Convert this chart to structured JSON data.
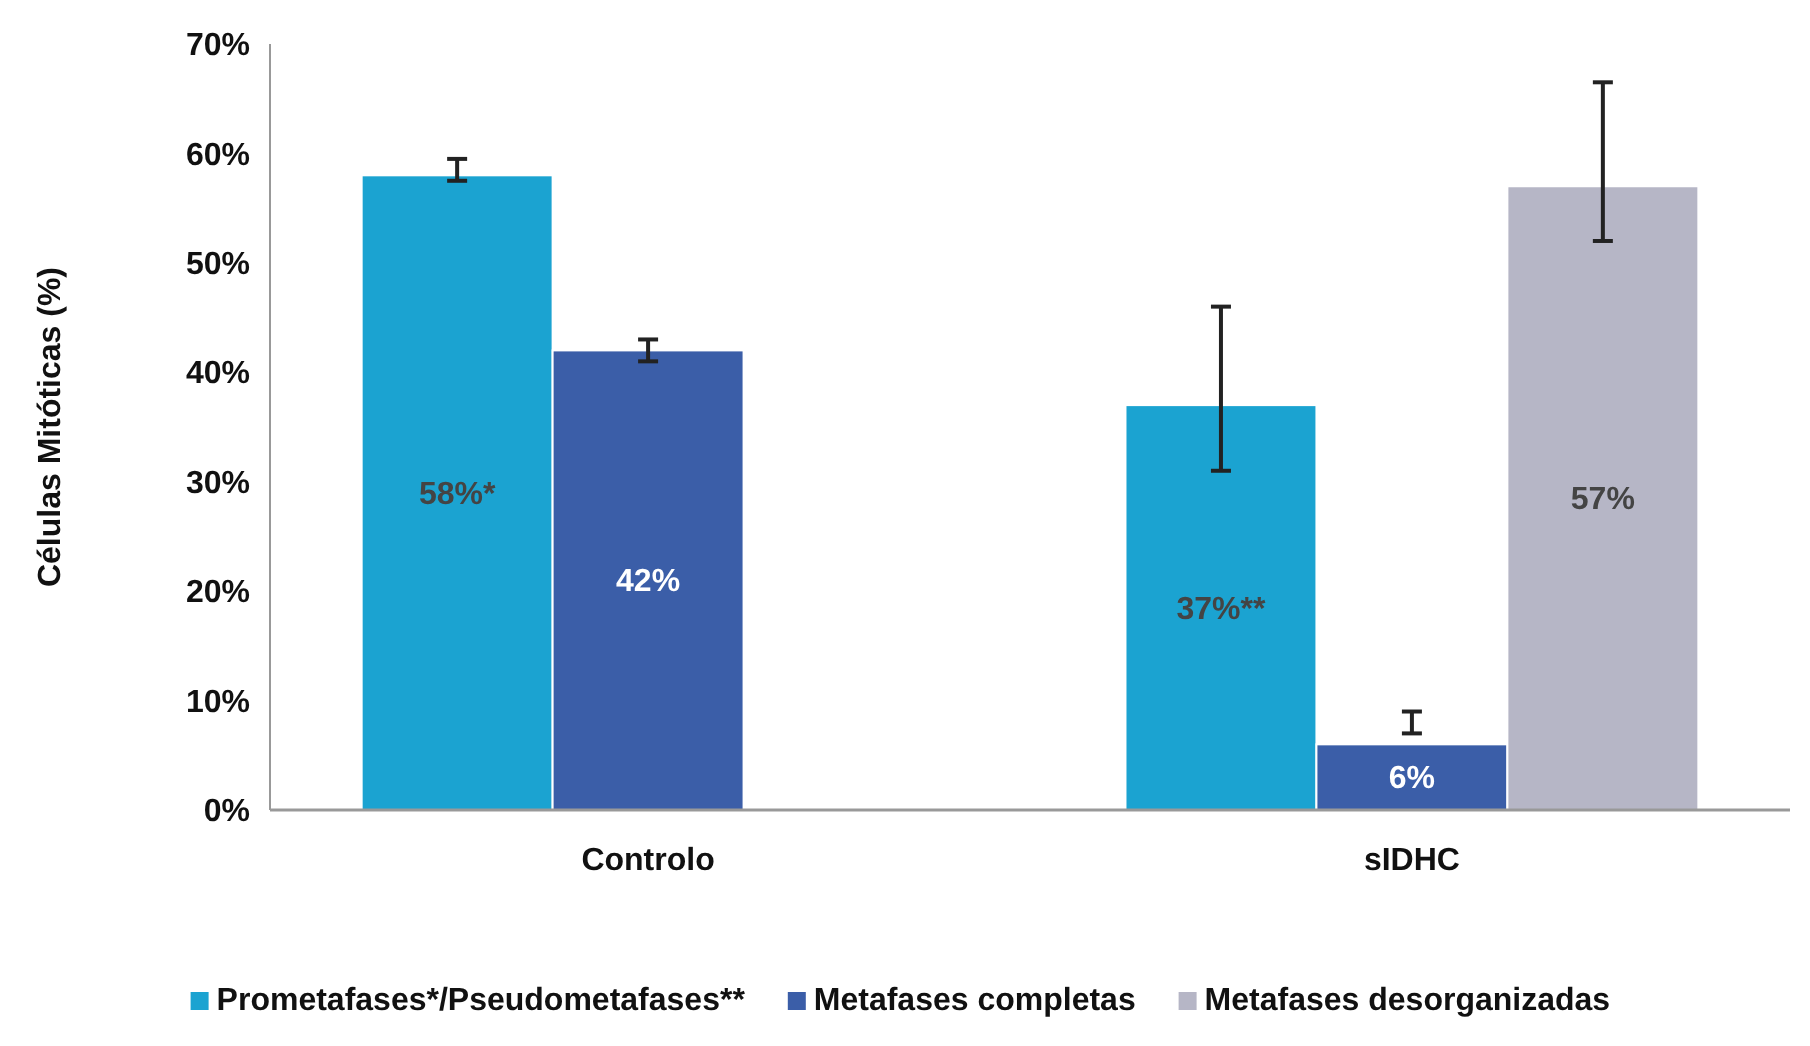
{
  "chart_data": {
    "type": "bar",
    "ylabel": "Células Mitóticas (%)",
    "categories": [
      "Controlo",
      "sIDHC"
    ],
    "series": [
      {
        "name": "Prometafases*/Pseudometafases**",
        "color": "#1ba3d1",
        "values": [
          58,
          37
        ],
        "value_labels": [
          "58%*",
          "37%**"
        ],
        "errors": [
          [
            57.5,
            59.5
          ],
          [
            31,
            46
          ]
        ]
      },
      {
        "name": "Metafases completas",
        "color": "#3b5ea8",
        "values": [
          42,
          6
        ],
        "value_labels": [
          "42%",
          "6%"
        ],
        "errors": [
          [
            41,
            43
          ],
          [
            7,
            9
          ]
        ]
      },
      {
        "name": "Metafases desorganizadas",
        "color": "#b6b6c6",
        "values": [
          null,
          57
        ],
        "value_labels": [
          null,
          "57%"
        ],
        "errors": [
          null,
          [
            52,
            66.5
          ]
        ]
      }
    ],
    "ylim": [
      0,
      70
    ],
    "yticks": [
      {
        "value": 0,
        "label": "0%"
      },
      {
        "value": 10,
        "label": "10%"
      },
      {
        "value": 20,
        "label": "20%"
      },
      {
        "value": 30,
        "label": "30%"
      },
      {
        "value": 40,
        "label": "40%"
      },
      {
        "value": 50,
        "label": "50%"
      },
      {
        "value": 60,
        "label": "60%"
      },
      {
        "value": 70,
        "label": "70%"
      }
    ],
    "grid": false,
    "legend": "bottom"
  }
}
